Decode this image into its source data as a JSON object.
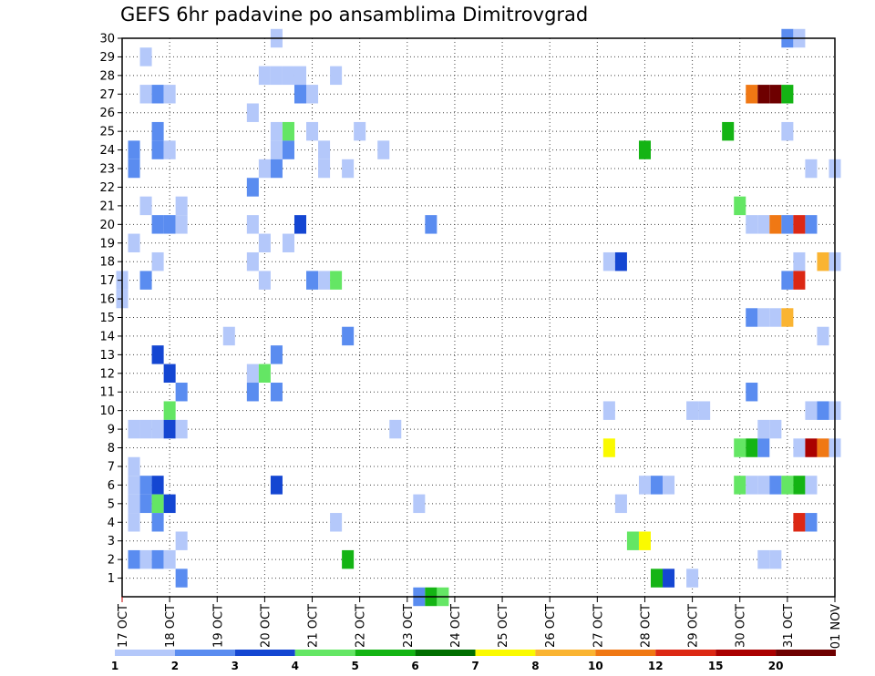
{
  "chart_data": {
    "type": "heatmap",
    "title": "GEFS 6hr padavine po ansamblima Dimitrovgrad",
    "x_tick_labels": [
      "17 OCT",
      "18 OCT",
      "19 OCT",
      "20 OCT",
      "21 OCT",
      "22 OCT",
      "23 OCT",
      "24 OCT",
      "25 OCT",
      "26 OCT",
      "27 OCT",
      "28 OCT",
      "29 OCT",
      "30 OCT",
      "31 OCT",
      "01 NOV"
    ],
    "xlabel": "",
    "ylabel": "",
    "members": [
      1,
      2,
      3,
      4,
      5,
      6,
      7,
      8,
      9,
      10,
      11,
      12,
      13,
      14,
      15,
      16,
      17,
      18,
      19,
      20,
      21,
      22,
      23,
      24,
      25,
      26,
      27,
      28,
      29,
      30
    ],
    "ylim": [
      0,
      30
    ],
    "steps_per_day": 4,
    "step_count": 60,
    "grid": "dotted",
    "legend": {
      "position": "bottom",
      "thresholds": [
        "1",
        "2",
        "3",
        "4",
        "5",
        "6",
        "7",
        "8",
        "10",
        "12",
        "15",
        "20"
      ],
      "colors": [
        "#b4c8fa",
        "#5a8cf0",
        "#1446d2",
        "#64e664",
        "#14b414",
        "#006e00",
        "#fafa00",
        "#fab432",
        "#f07814",
        "#dc2814",
        "#aa0000",
        "#6e0000"
      ]
    },
    "cells": [
      [
        30,
        13,
        1
      ],
      [
        30,
        56,
        2
      ],
      [
        30,
        57,
        1
      ],
      [
        29,
        2,
        1
      ],
      [
        28,
        12,
        1
      ],
      [
        28,
        13,
        1
      ],
      [
        28,
        14,
        1
      ],
      [
        28,
        15,
        1
      ],
      [
        28,
        18,
        1
      ],
      [
        27,
        2,
        1
      ],
      [
        27,
        3,
        2
      ],
      [
        27,
        4,
        1
      ],
      [
        27,
        15,
        2
      ],
      [
        27,
        16,
        1
      ],
      [
        27,
        53,
        9
      ],
      [
        27,
        54,
        12
      ],
      [
        27,
        55,
        12
      ],
      [
        27,
        56,
        5
      ],
      [
        26,
        11,
        1
      ],
      [
        25,
        3,
        2
      ],
      [
        25,
        13,
        1
      ],
      [
        25,
        14,
        4
      ],
      [
        25,
        16,
        1
      ],
      [
        25,
        20,
        1
      ],
      [
        25,
        51,
        5
      ],
      [
        25,
        56,
        1
      ],
      [
        24,
        1,
        2
      ],
      [
        24,
        3,
        2
      ],
      [
        24,
        4,
        1
      ],
      [
        24,
        13,
        1
      ],
      [
        24,
        14,
        2
      ],
      [
        24,
        17,
        1
      ],
      [
        24,
        22,
        1
      ],
      [
        24,
        44,
        5
      ],
      [
        23,
        1,
        2
      ],
      [
        23,
        12,
        1
      ],
      [
        23,
        13,
        2
      ],
      [
        23,
        17,
        1
      ],
      [
        23,
        19,
        1
      ],
      [
        23,
        58,
        1
      ],
      [
        23,
        60,
        1
      ],
      [
        22,
        11,
        2
      ],
      [
        21,
        2,
        1
      ],
      [
        21,
        5,
        1
      ],
      [
        21,
        52,
        4
      ],
      [
        20,
        3,
        2
      ],
      [
        20,
        4,
        2
      ],
      [
        20,
        5,
        1
      ],
      [
        20,
        11,
        1
      ],
      [
        20,
        15,
        3
      ],
      [
        20,
        26,
        2
      ],
      [
        20,
        53,
        1
      ],
      [
        20,
        54,
        1
      ],
      [
        20,
        55,
        9
      ],
      [
        20,
        56,
        2
      ],
      [
        20,
        57,
        10
      ],
      [
        20,
        58,
        2
      ],
      [
        19,
        1,
        1
      ],
      [
        19,
        12,
        1
      ],
      [
        19,
        14,
        1
      ],
      [
        18,
        3,
        1
      ],
      [
        18,
        11,
        1
      ],
      [
        18,
        41,
        1
      ],
      [
        18,
        42,
        3
      ],
      [
        18,
        57,
        1
      ],
      [
        18,
        59,
        8
      ],
      [
        18,
        60,
        1
      ],
      [
        17,
        0,
        1
      ],
      [
        17,
        2,
        2
      ],
      [
        17,
        12,
        1
      ],
      [
        17,
        16,
        2
      ],
      [
        17,
        17,
        1
      ],
      [
        17,
        18,
        4
      ],
      [
        17,
        56,
        2
      ],
      [
        17,
        57,
        10
      ],
      [
        16,
        0,
        1
      ],
      [
        15,
        53,
        2
      ],
      [
        15,
        54,
        1
      ],
      [
        15,
        55,
        1
      ],
      [
        15,
        56,
        8
      ],
      [
        14,
        9,
        1
      ],
      [
        14,
        19,
        2
      ],
      [
        14,
        59,
        1
      ],
      [
        13,
        3,
        3
      ],
      [
        13,
        13,
        2
      ],
      [
        12,
        4,
        3
      ],
      [
        12,
        11,
        1
      ],
      [
        12,
        12,
        4
      ],
      [
        11,
        5,
        2
      ],
      [
        11,
        11,
        2
      ],
      [
        11,
        13,
        2
      ],
      [
        11,
        53,
        2
      ],
      [
        10,
        4,
        4
      ],
      [
        10,
        41,
        1
      ],
      [
        10,
        48,
        1
      ],
      [
        10,
        49,
        1
      ],
      [
        10,
        58,
        1
      ],
      [
        10,
        59,
        2
      ],
      [
        10,
        60,
        1
      ],
      [
        9,
        1,
        1
      ],
      [
        9,
        2,
        1
      ],
      [
        9,
        3,
        1
      ],
      [
        9,
        4,
        3
      ],
      [
        9,
        5,
        1
      ],
      [
        9,
        23,
        1
      ],
      [
        9,
        54,
        1
      ],
      [
        9,
        55,
        1
      ],
      [
        8,
        41,
        7
      ],
      [
        8,
        52,
        4
      ],
      [
        8,
        53,
        5
      ],
      [
        8,
        54,
        2
      ],
      [
        8,
        57,
        1
      ],
      [
        8,
        58,
        11
      ],
      [
        8,
        59,
        9
      ],
      [
        8,
        60,
        1
      ],
      [
        7,
        1,
        1
      ],
      [
        6,
        1,
        1
      ],
      [
        6,
        2,
        2
      ],
      [
        6,
        3,
        3
      ],
      [
        6,
        13,
        3
      ],
      [
        6,
        44,
        1
      ],
      [
        6,
        45,
        2
      ],
      [
        6,
        46,
        1
      ],
      [
        6,
        52,
        4
      ],
      [
        6,
        53,
        1
      ],
      [
        6,
        54,
        1
      ],
      [
        6,
        55,
        2
      ],
      [
        6,
        56,
        4
      ],
      [
        6,
        57,
        5
      ],
      [
        6,
        58,
        1
      ],
      [
        5,
        1,
        1
      ],
      [
        5,
        2,
        2
      ],
      [
        5,
        3,
        4
      ],
      [
        5,
        4,
        3
      ],
      [
        5,
        25,
        1
      ],
      [
        5,
        42,
        1
      ],
      [
        4,
        1,
        1
      ],
      [
        4,
        3,
        2
      ],
      [
        4,
        18,
        1
      ],
      [
        4,
        57,
        10
      ],
      [
        4,
        58,
        2
      ],
      [
        3,
        5,
        1
      ],
      [
        3,
        43,
        4
      ],
      [
        3,
        44,
        7
      ],
      [
        2,
        1,
        2
      ],
      [
        2,
        2,
        1
      ],
      [
        2,
        3,
        2
      ],
      [
        2,
        4,
        1
      ],
      [
        2,
        19,
        5
      ],
      [
        2,
        54,
        1
      ],
      [
        2,
        55,
        1
      ],
      [
        1,
        5,
        2
      ],
      [
        1,
        45,
        5
      ],
      [
        1,
        46,
        3
      ],
      [
        1,
        48,
        1
      ],
      [
        0,
        25,
        2
      ],
      [
        0,
        26,
        5
      ],
      [
        0,
        27,
        4
      ]
    ]
  }
}
